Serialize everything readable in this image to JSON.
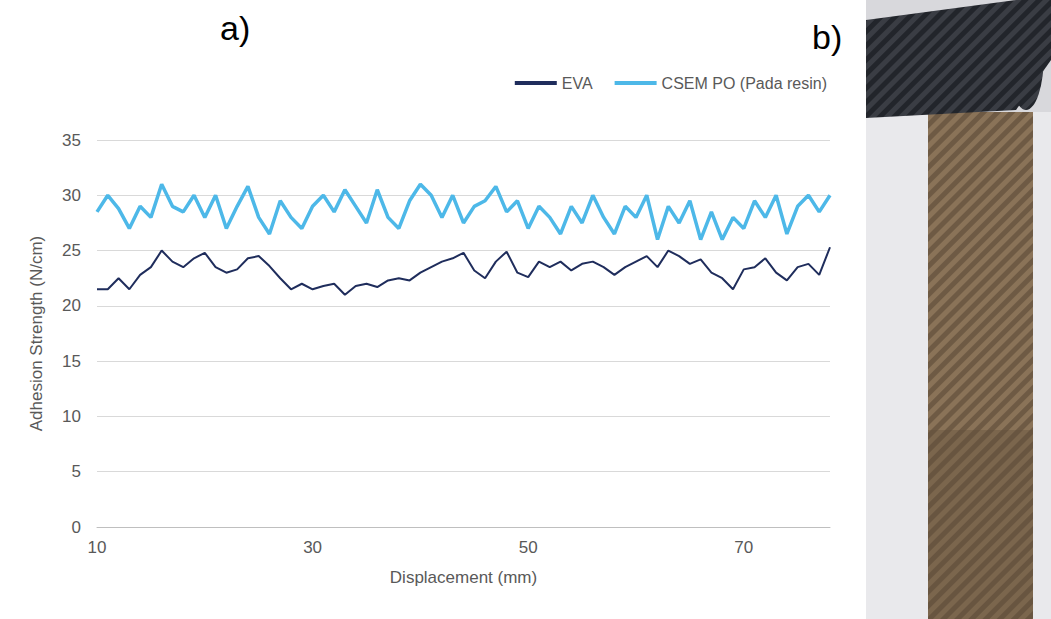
{
  "chart_data": {
    "type": "line",
    "title": "a)",
    "x_label": "Displacement (mm)",
    "y_label": "Adhesion Strength (N/cm)",
    "x": [
      10,
      11,
      12,
      13,
      14,
      15,
      16,
      17,
      18,
      19,
      20,
      21,
      22,
      23,
      24,
      25,
      26,
      27,
      28,
      29,
      30,
      31,
      32,
      33,
      34,
      35,
      36,
      37,
      38,
      39,
      40,
      41,
      42,
      43,
      44,
      45,
      46,
      47,
      48,
      49,
      50,
      51,
      52,
      53,
      54,
      55,
      56,
      57,
      58,
      59,
      60,
      61,
      62,
      63,
      64,
      65,
      66,
      67,
      68,
      69,
      70,
      71,
      72,
      73,
      74,
      75,
      76,
      77,
      78
    ],
    "series": [
      {
        "name": "EVA",
        "color": "#1f2d5c",
        "values": [
          21.5,
          21.5,
          22.5,
          21.5,
          22.8,
          23.5,
          25,
          24,
          23.5,
          24.3,
          24.8,
          23.5,
          23,
          23.3,
          24.3,
          24.5,
          23.6,
          22.5,
          21.5,
          22,
          21.5,
          21.8,
          22,
          21,
          21.8,
          22,
          21.7,
          22.3,
          22.5,
          22.3,
          23,
          23.5,
          24,
          24.3,
          24.8,
          23.2,
          22.5,
          24,
          24.9,
          23,
          22.6,
          24,
          23.5,
          24,
          23.2,
          23.8,
          24,
          23.5,
          22.8,
          23.5,
          24,
          24.5,
          23.5,
          25,
          24.5,
          23.8,
          24.2,
          23,
          22.5,
          21.5,
          23.3,
          23.5,
          24.3,
          23,
          22.3,
          23.5,
          23.8,
          22.8,
          25.3
        ]
      },
      {
        "name": "CSEM PO (Pada resin)",
        "color": "#4db8e8",
        "values": [
          28.5,
          30,
          28.8,
          27,
          29,
          28,
          31,
          29,
          28.5,
          30,
          28,
          30,
          27,
          29,
          30.8,
          28,
          26.5,
          29.5,
          28,
          27,
          29,
          30,
          28.5,
          30.5,
          29,
          27.5,
          30.5,
          28,
          27,
          29.5,
          31,
          30,
          28,
          30,
          27.5,
          29,
          29.5,
          30.8,
          28.5,
          29.5,
          27,
          29,
          28,
          26.5,
          29,
          27.5,
          30,
          28,
          26.5,
          29,
          28,
          30,
          26,
          29,
          27.5,
          29.5,
          26,
          28.5,
          26,
          28,
          27,
          29.5,
          28,
          30,
          26.5,
          29,
          30,
          28.5,
          30
        ]
      }
    ],
    "xlim": [
      10,
      78
    ],
    "xticks": [
      10,
      30,
      50,
      70
    ],
    "ylim": [
      0,
      35
    ],
    "yticks": [
      0,
      5,
      10,
      15,
      20,
      25,
      30,
      35
    ],
    "grid": true,
    "legend": "top right"
  },
  "photo": {
    "label": "b)"
  }
}
